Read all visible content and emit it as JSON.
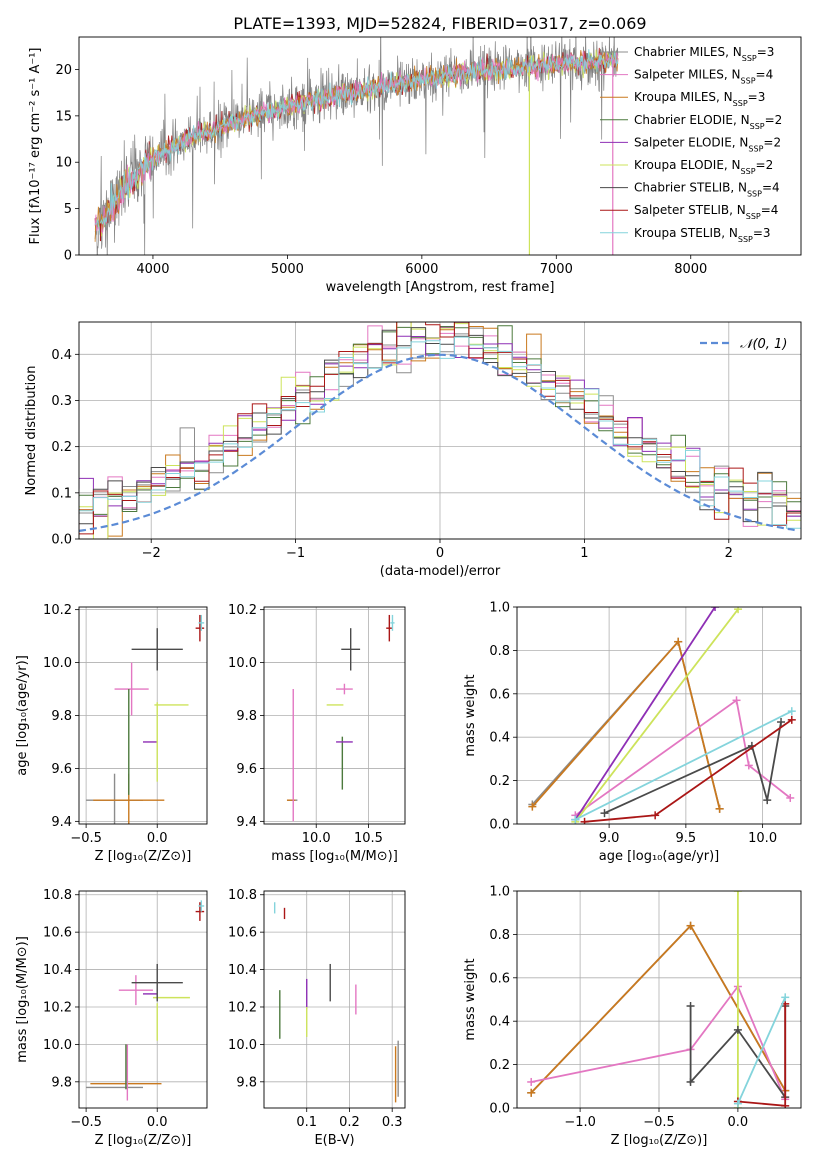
{
  "figure_title": "PLATE=1393, MJD=52824, FIBERID=0317, z=0.069",
  "colors": {
    "Chabrier MILES": "#8c8c8c",
    "Salpeter MILES": "#e377c2",
    "Kroupa MILES": "#c9791f",
    "Chabrier ELODIE": "#4c7a3d",
    "Salpeter ELODIE": "#8e2fb5",
    "Kroupa ELODIE": "#cde35b",
    "Chabrier STELIB": "#4a4a4a",
    "Salpeter STELIB": "#aa1616",
    "Kroupa STELIB": "#84d4dc",
    "gaussian": "#5b8bd6",
    "grid": "#b0b0b0"
  },
  "chart_data": [
    {
      "id": "spectrum",
      "type": "line",
      "title": "PLATE=1393, MJD=52824, FIBERID=0317, z=0.069",
      "xlabel": "wavelength [Angstrom, rest frame]",
      "ylabel": "Flux [fλ10⁻¹⁷ erg cm⁻² s⁻¹ A⁻¹]",
      "xlim": [
        3450,
        8820
      ],
      "ylim": [
        0,
        23.5
      ],
      "xticks": [
        4000,
        5000,
        6000,
        7000,
        8000
      ],
      "yticks": [
        0,
        5,
        10,
        15,
        20
      ],
      "grid": false,
      "legend_position": "right",
      "legend": [
        "Chabrier MILES, N_SSP=3",
        "Salpeter MILES, N_SSP=4",
        "Kroupa MILES, N_SSP=3",
        "Chabrier ELODIE, N_SSP=2",
        "Salpeter ELODIE, N_SSP=2",
        "Kroupa ELODIE, N_SSP=2",
        "Chabrier STELIB, N_SSP=4",
        "Salpeter STELIB, N_SSP=4",
        "Kroupa STELIB, N_SSP=3"
      ],
      "legend_display": [
        [
          "Chabrier MILES, N",
          "SSP",
          "=3"
        ],
        [
          "Salpeter MILES, N",
          "SSP",
          "=4"
        ],
        [
          "Kroupa MILES, N",
          "SSP",
          "=3"
        ],
        [
          "Chabrier ELODIE, N",
          "SSP",
          "=2"
        ],
        [
          "Salpeter ELODIE, N",
          "SSP",
          "=2"
        ],
        [
          "Kroupa ELODIE, N",
          "SSP",
          "=2"
        ],
        [
          "Chabrier STELIB, N",
          "SSP",
          "=4"
        ],
        [
          "Salpeter STELIB, N",
          "SSP",
          "=4"
        ],
        [
          "Kroupa STELIB, N",
          "SSP",
          "=3"
        ]
      ],
      "continuum": {
        "x": [
          3600,
          3700,
          3800,
          3900,
          4000,
          4100,
          4200,
          4300,
          4400,
          4600,
          4800,
          5000,
          5200,
          5400,
          5600,
          5800,
          6000,
          6200,
          6400,
          6600,
          6800,
          7000,
          7200,
          7400,
          7450
        ],
        "y": [
          3.2,
          5.2,
          7.5,
          9.0,
          10.5,
          11.3,
          12.0,
          12.9,
          13.2,
          14.3,
          15.3,
          16.0,
          16.7,
          17.3,
          17.8,
          18.4,
          18.9,
          19.3,
          19.8,
          20.0,
          20.3,
          20.6,
          20.8,
          21.0,
          21.0
        ]
      },
      "data_noise_sigma": 1.3,
      "x_range": [
        3570,
        7460
      ],
      "dips": [
        {
          "series": "Kroupa ELODIE",
          "x": 6800,
          "to": 0
        },
        {
          "series": "Salpeter MILES",
          "x": 7420,
          "to": 0
        },
        {
          "series": "Salpeter STELIB",
          "x": 3610,
          "to": 1.5
        }
      ]
    },
    {
      "id": "residuals",
      "type": "histogram",
      "xlabel": "(data-model)/error",
      "ylabel": "Normed distribution",
      "xlim": [
        -2.5,
        2.5
      ],
      "ylim": [
        0,
        0.47
      ],
      "xticks": [
        -2,
        -1,
        0,
        1,
        2
      ],
      "yticks": [
        0.0,
        0.1,
        0.2,
        0.3,
        0.4
      ],
      "grid": true,
      "legend": [
        "𝒩(0, 1)"
      ],
      "legend_position": "top-right",
      "gaussian": {
        "mean": 0,
        "sigma": 1
      },
      "bin_width": 0.1
    },
    {
      "id": "age-vs-Z",
      "type": "errorbar",
      "xlabel": "Z [log₁₀(Z/Z⊙)]",
      "ylabel": "age [log₁₀(age/yr)]",
      "xlim": [
        -0.55,
        0.35
      ],
      "ylim": [
        9.39,
        10.21
      ],
      "xticks": [
        -0.5,
        0.0
      ],
      "yticks": [
        9.4,
        9.6,
        9.8,
        10.0,
        10.2
      ],
      "grid": true,
      "points": [
        {
          "series": "Chabrier MILES",
          "x": -0.3,
          "y": 9.48,
          "xerr": 0.2,
          "yerr": 0.1
        },
        {
          "series": "Kroupa MILES",
          "x": -0.2,
          "y": 9.48,
          "xerr": 0.25,
          "yerr": 0.1
        },
        {
          "series": "Salpeter MILES",
          "x": -0.18,
          "y": 9.9,
          "xerr": 0.12,
          "yerr": 0.1
        },
        {
          "series": "Chabrier ELODIE",
          "x": -0.2,
          "y": 9.7,
          "xerr": 0.0,
          "yerr": 0.2
        },
        {
          "series": "Salpeter ELODIE",
          "x": -0.05,
          "y": 9.7,
          "xerr": 0.05,
          "yerr": 0.0
        },
        {
          "series": "Kroupa ELODIE",
          "x": 0.1,
          "y": 9.84,
          "xerr": 0.12,
          "yerr": 0.0
        },
        {
          "series": "Chabrier STELIB",
          "x": 0.0,
          "y": 10.05,
          "xerr": 0.18,
          "yerr": 0.08
        },
        {
          "series": "Salpeter STELIB",
          "x": 0.3,
          "y": 10.13,
          "xerr": 0.03,
          "yerr": 0.05
        },
        {
          "series": "Kroupa STELIB",
          "x": 0.31,
          "y": 10.15,
          "xerr": 0.02,
          "yerr": 0.03
        },
        {
          "series": "Kroupa ELODIE",
          "x": 0.0,
          "y": 9.7,
          "xerr": 0.0,
          "yerr": 0.15
        }
      ]
    },
    {
      "id": "age-vs-mass",
      "type": "errorbar",
      "xlabel": "mass [log₁₀(M/M⊙)]",
      "ylabel": "",
      "xlim": [
        9.5,
        10.85
      ],
      "ylim": [
        9.39,
        10.21
      ],
      "xticks": [
        10.0,
        10.5
      ],
      "yticks": [
        9.4,
        9.6,
        9.8,
        10.0,
        10.2
      ],
      "grid": true,
      "points": [
        {
          "series": "Chabrier MILES",
          "x": 9.77,
          "y": 9.48,
          "xerr": 0.05,
          "yerr": 0.0
        },
        {
          "series": "Kroupa MILES",
          "x": 9.76,
          "y": 9.48,
          "xerr": 0.04,
          "yerr": 0.0
        },
        {
          "series": "Salpeter MILES",
          "x": 9.78,
          "y": 9.65,
          "xerr": 0.0,
          "yerr": 0.25
        },
        {
          "series": "Salpeter MILES",
          "x": 10.27,
          "y": 9.9,
          "xerr": 0.08,
          "yerr": 0.02
        },
        {
          "series": "Chabrier ELODIE",
          "x": 10.25,
          "y": 9.62,
          "xerr": 0.0,
          "yerr": 0.1
        },
        {
          "series": "Salpeter ELODIE",
          "x": 10.27,
          "y": 9.7,
          "xerr": 0.08,
          "yerr": 0.0
        },
        {
          "series": "Kroupa ELODIE",
          "x": 10.18,
          "y": 9.84,
          "xerr": 0.08,
          "yerr": 0.0
        },
        {
          "series": "Chabrier STELIB",
          "x": 10.33,
          "y": 10.05,
          "xerr": 0.09,
          "yerr": 0.08
        },
        {
          "series": "Salpeter STELIB",
          "x": 10.7,
          "y": 10.13,
          "xerr": 0.03,
          "yerr": 0.05
        },
        {
          "series": "Kroupa STELIB",
          "x": 10.73,
          "y": 10.15,
          "xerr": 0.02,
          "yerr": 0.03
        }
      ]
    },
    {
      "id": "weight-vs-age",
      "type": "line",
      "xlabel": "age [log₁₀(age/yr)]",
      "ylabel": "mass weight",
      "xlim": [
        8.4,
        10.25
      ],
      "ylim": [
        0,
        1
      ],
      "xticks": [
        9.0,
        9.5,
        10.0
      ],
      "yticks": [
        0.0,
        0.2,
        0.4,
        0.6,
        0.8,
        1.0
      ],
      "grid": true,
      "series": [
        {
          "series": "Chabrier MILES",
          "x": [
            8.5,
            9.45,
            9.72
          ],
          "y": [
            0.09,
            0.84,
            0.07
          ]
        },
        {
          "series": "Kroupa MILES",
          "x": [
            8.5,
            9.45,
            9.72
          ],
          "y": [
            0.08,
            0.84,
            0.07
          ]
        },
        {
          "series": "Salpeter MILES",
          "x": [
            8.78,
            9.83,
            9.91,
            10.18
          ],
          "y": [
            0.04,
            0.57,
            0.27,
            0.12
          ]
        },
        {
          "series": "Salpeter ELODIE",
          "x": [
            8.78,
            9.69
          ],
          "y": [
            0.02,
            1.0
          ]
        },
        {
          "series": "Kroupa ELODIE",
          "x": [
            8.78,
            9.84
          ],
          "y": [
            0.01,
            0.99
          ]
        },
        {
          "series": "Chabrier STELIB",
          "x": [
            8.97,
            9.93,
            10.03,
            10.12
          ],
          "y": [
            0.05,
            0.36,
            0.11,
            0.47
          ]
        },
        {
          "series": "Salpeter STELIB",
          "x": [
            8.84,
            9.3,
            10.19
          ],
          "y": [
            0.01,
            0.04,
            0.48
          ]
        },
        {
          "series": "Kroupa STELIB",
          "x": [
            8.78,
            10.19
          ],
          "y": [
            0.02,
            0.52
          ]
        }
      ]
    },
    {
      "id": "mass-vs-Z",
      "type": "errorbar",
      "xlabel": "Z [log₁₀(Z/Z⊙)]",
      "ylabel": "mass [log₁₀(M/M⊙)]",
      "xlim": [
        -0.55,
        0.35
      ],
      "ylim": [
        9.66,
        10.82
      ],
      "xticks": [
        -0.5,
        0.0
      ],
      "yticks": [
        9.8,
        10.0,
        10.2,
        10.4,
        10.6,
        10.8
      ],
      "grid": true,
      "points": [
        {
          "series": "Chabrier MILES",
          "x": -0.3,
          "y": 9.77,
          "xerr": 0.2,
          "yerr": 0.0
        },
        {
          "series": "Kroupa MILES",
          "x": -0.22,
          "y": 9.79,
          "xerr": 0.25,
          "yerr": 0.0
        },
        {
          "series": "Salpeter MILES",
          "x": -0.21,
          "y": 9.85,
          "xerr": 0.0,
          "yerr": 0.15
        },
        {
          "series": "Chabrier ELODIE",
          "x": -0.22,
          "y": 9.88,
          "xerr": 0.0,
          "yerr": 0.12
        },
        {
          "series": "Salpeter MILES",
          "x": -0.15,
          "y": 10.29,
          "xerr": 0.12,
          "yerr": 0.08
        },
        {
          "series": "Salpeter ELODIE",
          "x": -0.05,
          "y": 10.27,
          "xerr": 0.05,
          "yerr": 0.0
        },
        {
          "series": "Kroupa ELODIE",
          "x": 0.1,
          "y": 10.25,
          "xerr": 0.13,
          "yerr": 0.0
        },
        {
          "series": "Kroupa ELODIE",
          "x": 0.0,
          "y": 10.12,
          "xerr": 0.0,
          "yerr": 0.1
        },
        {
          "series": "Chabrier STELIB",
          "x": 0.0,
          "y": 10.33,
          "xerr": 0.18,
          "yerr": 0.1
        },
        {
          "series": "Salpeter STELIB",
          "x": 0.3,
          "y": 10.71,
          "xerr": 0.03,
          "yerr": 0.05
        },
        {
          "series": "Kroupa STELIB",
          "x": 0.31,
          "y": 10.74,
          "xerr": 0.02,
          "yerr": 0.03
        }
      ]
    },
    {
      "id": "mass-vs-ebv",
      "type": "errorbar",
      "xlabel": "E(B-V)",
      "ylabel": "",
      "xlim": [
        0.0,
        0.33
      ],
      "ylim": [
        9.66,
        10.82
      ],
      "xticks": [
        0.1,
        0.2,
        0.3
      ],
      "yticks": [
        9.8,
        10.0,
        10.2,
        10.4,
        10.6,
        10.8
      ],
      "grid": true,
      "points": [
        {
          "series": "Kroupa STELIB",
          "x": 0.025,
          "y": 10.73,
          "xerr": 0.0,
          "yerr": 0.03
        },
        {
          "series": "Salpeter STELIB",
          "x": 0.048,
          "y": 10.7,
          "xerr": 0.0,
          "yerr": 0.03
        },
        {
          "series": "Chabrier ELODIE",
          "x": 0.037,
          "y": 10.16,
          "xerr": 0.0,
          "yerr": 0.13
        },
        {
          "series": "Salpeter ELODIE",
          "x": 0.1,
          "y": 10.27,
          "xerr": 0.0,
          "yerr": 0.08
        },
        {
          "series": "Kroupa ELODIE",
          "x": 0.1,
          "y": 10.12,
          "xerr": 0.0,
          "yerr": 0.08
        },
        {
          "series": "Chabrier STELIB",
          "x": 0.155,
          "y": 10.33,
          "xerr": 0.0,
          "yerr": 0.1
        },
        {
          "series": "Salpeter MILES",
          "x": 0.215,
          "y": 10.24,
          "xerr": 0.0,
          "yerr": 0.08
        },
        {
          "series": "Kroupa MILES",
          "x": 0.308,
          "y": 9.84,
          "xerr": 0.0,
          "yerr": 0.15
        },
        {
          "series": "Chabrier MILES",
          "x": 0.314,
          "y": 9.87,
          "xerr": 0.0,
          "yerr": 0.15
        }
      ]
    },
    {
      "id": "weight-vs-Z",
      "type": "line",
      "xlabel": "Z [log₁₀(Z/Z⊙)]",
      "ylabel": "mass weight",
      "xlim": [
        -1.4,
        0.4
      ],
      "ylim": [
        0,
        1
      ],
      "xticks": [
        -1.0,
        -0.5,
        0.0
      ],
      "yticks": [
        0.0,
        0.2,
        0.4,
        0.6,
        0.8,
        1.0
      ],
      "grid": true,
      "series": [
        {
          "series": "Chabrier MILES",
          "x": [
            -1.31,
            -0.3,
            0.3
          ],
          "y": [
            0.07,
            0.84,
            0.08
          ]
        },
        {
          "series": "Kroupa MILES",
          "x": [
            -1.31,
            -0.3,
            0.3
          ],
          "y": [
            0.07,
            0.84,
            0.08
          ]
        },
        {
          "series": "Salpeter MILES",
          "x": [
            -1.31,
            -0.3,
            0.0,
            0.3
          ],
          "y": [
            0.12,
            0.27,
            0.56,
            0.04
          ]
        },
        {
          "series": "Kroupa ELODIE",
          "x": [
            0.0,
            0.0
          ],
          "y": [
            0.0,
            1.0
          ]
        },
        {
          "series": "Chabrier STELIB",
          "x": [
            -0.3,
            -0.3,
            0.0,
            0.3,
            0.3
          ],
          "y": [
            0.47,
            0.12,
            0.36,
            0.05,
            0.47
          ]
        },
        {
          "series": "Salpeter STELIB",
          "x": [
            0.0,
            0.3,
            0.3
          ],
          "y": [
            0.03,
            0.01,
            0.48
          ]
        },
        {
          "series": "Kroupa STELIB",
          "x": [
            0.0,
            0.3
          ],
          "y": [
            0.02,
            0.51
          ]
        }
      ]
    }
  ]
}
